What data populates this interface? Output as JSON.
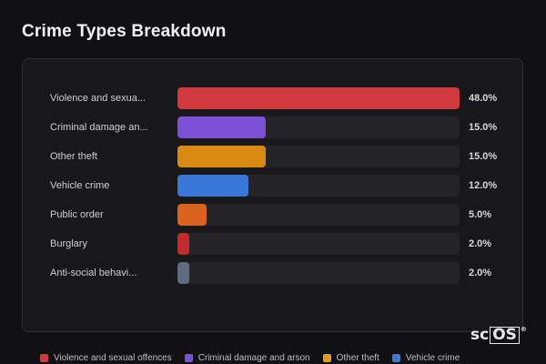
{
  "title": "Crime Types Breakdown",
  "chart_data": {
    "type": "bar",
    "orientation": "horizontal",
    "title": "Crime Types Breakdown",
    "unit": "%",
    "xlim": [
      0,
      48
    ],
    "categories": [
      "Violence and sexual offences",
      "Criminal damage and arson",
      "Other theft",
      "Vehicle crime",
      "Public order",
      "Burglary",
      "Anti-social behaviour"
    ],
    "display_labels": [
      "Violence and sexua...",
      "Criminal damage an...",
      "Other theft",
      "Vehicle crime",
      "Public order",
      "Burglary",
      "Anti-social behavi..."
    ],
    "values": [
      48.0,
      15.0,
      15.0,
      12.0,
      5.0,
      2.0,
      2.0
    ],
    "value_labels": [
      "48.0%",
      "15.0%",
      "15.0%",
      "12.0%",
      "5.0%",
      "2.0%",
      "2.0%"
    ],
    "colors": [
      "#d0393d",
      "#7b4fd6",
      "#d98a13",
      "#3a78d8",
      "#d9631f",
      "#c42b2e",
      "#5f6b80"
    ],
    "legend": {
      "placement": "bottom",
      "entries": [
        {
          "label": "Violence and sexual offences",
          "color": "#d0393d"
        },
        {
          "label": "Criminal damage and arson",
          "color": "#7b4fd6"
        },
        {
          "label": "Other theft",
          "color": "#e59a1a"
        },
        {
          "label": "Vehicle crime",
          "color": "#3a78d8"
        }
      ]
    }
  },
  "watermark": {
    "prefix": "sc",
    "boxed": "OS",
    "mark": "®"
  }
}
